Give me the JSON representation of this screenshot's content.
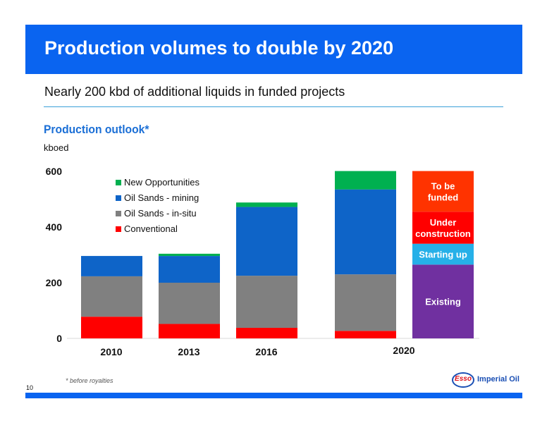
{
  "slide": {
    "title": "Production volumes to double by 2020",
    "subtitle": "Nearly 200 kbd of additional liquids in funded projects",
    "footnote": "* before royalties",
    "page_number": "10",
    "logo": {
      "mark": "Esso",
      "name": "Imperial Oil"
    }
  },
  "colors": {
    "header": "#0a64f0",
    "conventional": "#ff0000",
    "oil_sands_in_situ": "#808080",
    "oil_sands_mining": "#0e64c8",
    "new_opportunities": "#00b050",
    "existing": "#7030a0",
    "starting_up": "#26b0e8",
    "under_construction": "#ff0000",
    "to_be_funded": "#ff3300"
  },
  "chart_data": {
    "type": "bar",
    "stacked": true,
    "title": "Production outlook*",
    "ylabel": "kboed",
    "ylim": [
      0,
      600
    ],
    "yticks": [
      0,
      200,
      400,
      600
    ],
    "grid": false,
    "legend": "top-left",
    "categories": [
      "2010",
      "2013",
      "2016",
      "2020"
    ],
    "series": [
      {
        "name": "Conventional",
        "values": [
          78,
          52,
          38,
          27
        ]
      },
      {
        "name": "Oil Sands - in-situ",
        "values": [
          145,
          148,
          187,
          203
        ]
      },
      {
        "name": "Oil Sands - mining",
        "values": [
          73,
          96,
          247,
          305
        ]
      },
      {
        "name": "New Opportunities",
        "values": [
          0,
          8,
          16,
          66
        ]
      }
    ],
    "breakdown_2020": {
      "segments": [
        {
          "label": "Existing",
          "value": 265
        },
        {
          "label": "Starting up",
          "value": 75
        },
        {
          "label": "Under construction",
          "value": 115
        },
        {
          "label": "To be funded",
          "value": 146
        }
      ]
    }
  }
}
